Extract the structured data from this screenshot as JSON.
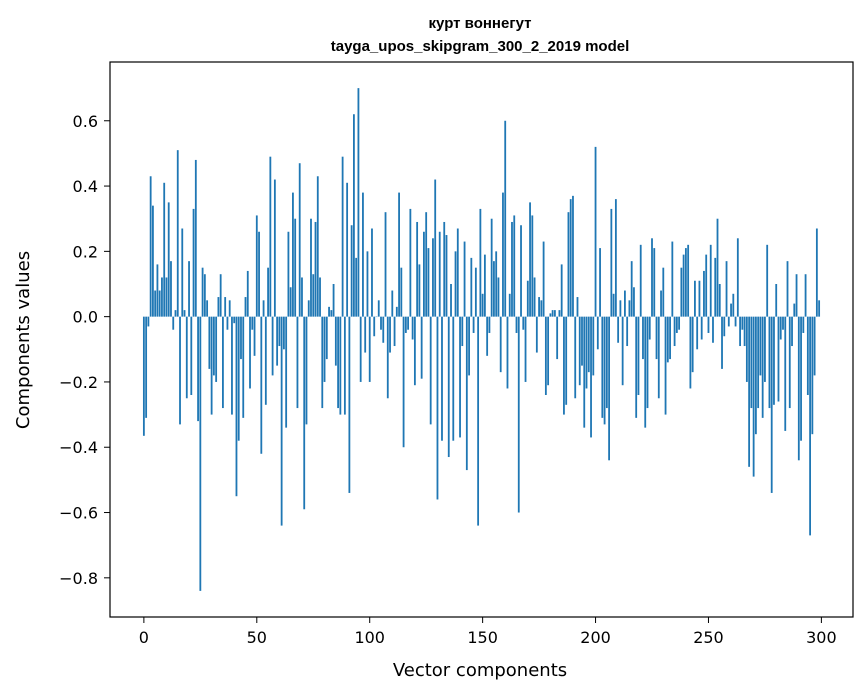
{
  "chart_data": {
    "type": "bar",
    "title": "курт воннегут",
    "subtitle": "tayga_upos_skipgram_300_2_2019 model",
    "xlabel": "Vector components",
    "ylabel": "Components values",
    "xlim": [
      -15,
      314
    ],
    "ylim": [
      -0.92,
      0.78
    ],
    "xticks": [
      0,
      50,
      100,
      150,
      200,
      250,
      300
    ],
    "yticks": [
      -0.8,
      -0.6,
      -0.4,
      -0.2,
      0.0,
      0.2,
      0.4,
      0.6
    ],
    "ytick_labels": [
      "−0.8",
      "−0.6",
      "−0.4",
      "−0.2",
      "0.0",
      "0.2",
      "0.4",
      "0.6"
    ],
    "bar_color": "#1f77b4",
    "x": "components 0..299",
    "values": [
      -0.365,
      -0.31,
      -0.03,
      0.43,
      0.34,
      0.08,
      0.16,
      0.08,
      0.12,
      0.41,
      0.12,
      0.35,
      0.17,
      -0.04,
      0.02,
      0.51,
      -0.33,
      0.27,
      0.02,
      -0.25,
      0.17,
      -0.24,
      0.33,
      0.48,
      -0.32,
      -0.84,
      0.15,
      0.13,
      0.05,
      -0.16,
      -0.3,
      -0.18,
      -0.2,
      0.06,
      0.13,
      -0.28,
      0.06,
      -0.04,
      0.05,
      -0.3,
      -0.02,
      -0.55,
      -0.38,
      -0.13,
      -0.31,
      0.06,
      0.14,
      -0.22,
      -0.04,
      -0.12,
      0.31,
      0.26,
      -0.42,
      0.05,
      -0.27,
      0.15,
      0.49,
      -0.18,
      0.42,
      -0.15,
      -0.09,
      -0.64,
      -0.1,
      -0.34,
      0.26,
      0.09,
      0.38,
      0.3,
      -0.28,
      0.47,
      0.12,
      -0.59,
      -0.33,
      0.05,
      0.3,
      0.13,
      0.29,
      0.43,
      0.12,
      -0.28,
      -0.2,
      -0.13,
      0.03,
      0.02,
      0.1,
      -0.15,
      -0.28,
      -0.3,
      0.49,
      -0.3,
      0.41,
      -0.54,
      0.28,
      0.62,
      0.18,
      0.7,
      -0.2,
      0.38,
      -0.11,
      0.2,
      -0.2,
      0.27,
      -0.06,
      0.0,
      0.05,
      -0.04,
      -0.08,
      0.32,
      -0.25,
      -0.11,
      0.08,
      -0.09,
      0.03,
      0.38,
      0.15,
      -0.4,
      -0.05,
      -0.04,
      0.33,
      -0.07,
      -0.21,
      0.29,
      0.16,
      -0.19,
      0.26,
      0.32,
      0.21,
      -0.33,
      0.24,
      0.42,
      -0.56,
      0.26,
      -0.38,
      0.29,
      0.25,
      -0.43,
      0.1,
      -0.38,
      0.2,
      0.27,
      -0.37,
      -0.09,
      0.23,
      -0.47,
      -0.18,
      0.18,
      -0.05,
      0.15,
      -0.64,
      0.33,
      0.07,
      0.19,
      -0.12,
      -0.05,
      0.3,
      0.17,
      0.2,
      0.12,
      -0.17,
      0.38,
      0.6,
      -0.22,
      0.07,
      0.29,
      0.31,
      -0.05,
      -0.6,
      0.28,
      -0.04,
      -0.2,
      0.11,
      0.35,
      0.31,
      0.12,
      -0.11,
      0.06,
      0.05,
      0.23,
      -0.24,
      -0.21,
      0.01,
      0.02,
      0.02,
      -0.13,
      0.02,
      0.16,
      -0.3,
      -0.27,
      0.32,
      0.36,
      0.37,
      -0.25,
      0.06,
      -0.21,
      -0.15,
      -0.34,
      -0.22,
      -0.17,
      -0.37,
      -0.18,
      0.52,
      -0.1,
      0.21,
      -0.31,
      -0.33,
      -0.28,
      -0.44,
      0.33,
      0.07,
      0.36,
      -0.08,
      0.05,
      -0.21,
      0.08,
      -0.09,
      0.05,
      0.17,
      0.09,
      -0.31,
      -0.24,
      0.22,
      -0.13,
      -0.34,
      -0.28,
      -0.07,
      0.24,
      0.21,
      -0.13,
      -0.25,
      0.08,
      0.15,
      -0.3,
      -0.14,
      -0.13,
      0.23,
      -0.09,
      -0.05,
      -0.04,
      0.15,
      0.19,
      0.21,
      0.22,
      -0.22,
      -0.17,
      0.11,
      -0.1,
      0.11,
      -0.07,
      0.14,
      0.19,
      -0.05,
      0.22,
      -0.08,
      0.18,
      0.3,
      0.1,
      -0.16,
      -0.06,
      0.17,
      -0.03,
      0.04,
      0.07,
      -0.03,
      0.24,
      -0.09,
      -0.04,
      -0.09,
      -0.2,
      -0.46,
      -0.28,
      -0.49,
      -0.36,
      -0.28,
      -0.18,
      -0.31,
      -0.2,
      0.22,
      -0.28,
      -0.54,
      -0.27,
      0.1,
      -0.26,
      -0.07,
      -0.04,
      -0.35,
      0.17,
      -0.28,
      -0.09,
      0.04,
      0.13,
      -0.44,
      -0.38,
      -0.05,
      0.13,
      -0.24,
      -0.67,
      -0.36,
      -0.18,
      0.27,
      0.05
    ]
  }
}
